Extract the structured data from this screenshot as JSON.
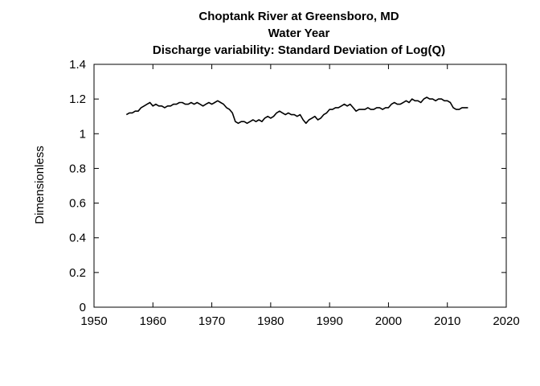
{
  "chart_data": {
    "type": "line",
    "title_lines": [
      "Choptank River at Greensboro, MD",
      "Water Year",
      "Discharge variability: Standard Deviation of Log(Q)"
    ],
    "xlabel": "",
    "ylabel": "Dimensionless",
    "xlim": [
      1950,
      2020
    ],
    "ylim": [
      0,
      1.4
    ],
    "x_ticks": [
      "1950",
      "1960",
      "1970",
      "1980",
      "1990",
      "2000",
      "2010",
      "2020"
    ],
    "y_ticks": [
      "0",
      "0.2",
      "0.4",
      "0.6",
      "0.8",
      "1",
      "1.2",
      "1.4"
    ],
    "grid": false,
    "legend": "none",
    "line_color": "#000000",
    "series": [
      {
        "x": [
          1955.5,
          1956.0,
          1956.5,
          1957.0,
          1957.5,
          1958.0,
          1958.5,
          1959.0,
          1959.5,
          1960.0,
          1960.5,
          1961.0,
          1961.5,
          1962.0,
          1962.5,
          1963.0,
          1963.5,
          1964.0,
          1964.5,
          1965.0,
          1965.5,
          1966.0,
          1966.5,
          1967.0,
          1967.5,
          1968.0,
          1968.5,
          1969.0,
          1969.5,
          1970.0,
          1970.5,
          1971.0,
          1971.5,
          1972.0,
          1972.5,
          1973.0,
          1973.5,
          1974.0,
          1974.5,
          1975.0,
          1975.5,
          1976.0,
          1976.5,
          1977.0,
          1977.5,
          1978.0,
          1978.5,
          1979.0,
          1979.5,
          1980.0,
          1980.5,
          1981.0,
          1981.5,
          1982.0,
          1982.5,
          1983.0,
          1983.5,
          1984.0,
          1984.5,
          1985.0,
          1985.5,
          1986.0,
          1986.5,
          1987.0,
          1987.5,
          1988.0,
          1988.5,
          1989.0,
          1989.5,
          1990.0,
          1990.5,
          1991.0,
          1991.5,
          1992.0,
          1992.5,
          1993.0,
          1993.5,
          1994.0,
          1994.5,
          1995.0,
          1995.5,
          1996.0,
          1996.5,
          1997.0,
          1997.5,
          1998.0,
          1998.5,
          1999.0,
          1999.5,
          2000.0,
          2000.5,
          2001.0,
          2001.5,
          2002.0,
          2002.5,
          2003.0,
          2003.5,
          2004.0,
          2004.5,
          2005.0,
          2005.5,
          2006.0,
          2006.5,
          2007.0,
          2007.5,
          2008.0,
          2008.5,
          2009.0,
          2009.5,
          2010.0,
          2010.5,
          2011.0,
          2011.5,
          2012.0,
          2012.5,
          2013.0,
          2013.5
        ],
        "y": [
          1.11,
          1.12,
          1.12,
          1.13,
          1.13,
          1.15,
          1.16,
          1.17,
          1.18,
          1.16,
          1.17,
          1.16,
          1.16,
          1.15,
          1.16,
          1.16,
          1.17,
          1.17,
          1.18,
          1.18,
          1.17,
          1.17,
          1.18,
          1.17,
          1.18,
          1.17,
          1.16,
          1.17,
          1.18,
          1.17,
          1.18,
          1.19,
          1.18,
          1.17,
          1.15,
          1.14,
          1.12,
          1.07,
          1.06,
          1.07,
          1.07,
          1.06,
          1.07,
          1.08,
          1.07,
          1.08,
          1.07,
          1.09,
          1.1,
          1.09,
          1.1,
          1.12,
          1.13,
          1.12,
          1.11,
          1.12,
          1.11,
          1.11,
          1.1,
          1.11,
          1.08,
          1.06,
          1.08,
          1.09,
          1.1,
          1.08,
          1.09,
          1.11,
          1.12,
          1.14,
          1.14,
          1.15,
          1.15,
          1.16,
          1.17,
          1.16,
          1.17,
          1.15,
          1.13,
          1.14,
          1.14,
          1.14,
          1.15,
          1.14,
          1.14,
          1.15,
          1.15,
          1.14,
          1.15,
          1.15,
          1.17,
          1.18,
          1.17,
          1.17,
          1.18,
          1.19,
          1.18,
          1.2,
          1.19,
          1.19,
          1.18,
          1.2,
          1.21,
          1.2,
          1.2,
          1.19,
          1.2,
          1.2,
          1.19,
          1.19,
          1.18,
          1.15,
          1.14,
          1.14,
          1.15,
          1.15,
          1.15
        ]
      }
    ]
  }
}
